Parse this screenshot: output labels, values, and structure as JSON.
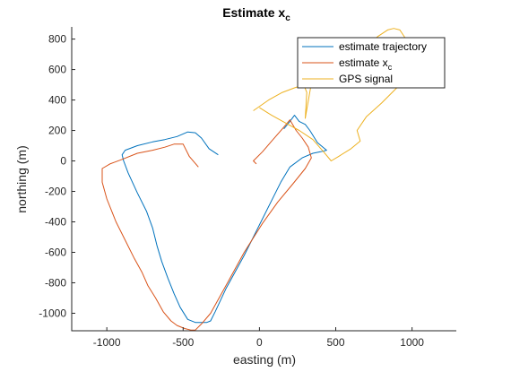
{
  "chart_data": {
    "type": "line",
    "title": "Estimate x",
    "title_subscript": "c",
    "xlabel": "easting (m)",
    "ylabel": "northing (m)",
    "xlim": [
      -1230,
      1290
    ],
    "ylim": [
      -1115,
      880
    ],
    "xticks": [
      -1000,
      -500,
      0,
      500,
      1000
    ],
    "xtick_labels": [
      "-1000",
      "-500",
      "0",
      "500",
      "1000"
    ],
    "yticks": [
      800,
      600,
      400,
      200,
      0,
      -200,
      -400,
      -600,
      -800,
      -1000
    ],
    "ytick_labels": [
      "800",
      "600",
      "400",
      "200",
      "0",
      "-200",
      "-400",
      "-600",
      "-800",
      "-1000"
    ],
    "grid": false,
    "legend_position": "top-right",
    "series": [
      {
        "name": "estimate trajectory",
        "name_subscript": "",
        "color": "#0072BD",
        "x": [
          -270,
          -330,
          -380,
          -420,
          -470,
          -540,
          -620,
          -700,
          -800,
          -880,
          -900,
          -890,
          -860,
          -800,
          -740,
          -700,
          -670,
          -640,
          -600,
          -560,
          -520,
          -470,
          -420,
          -380,
          -345,
          -320,
          -290,
          -220,
          -100,
          0,
          80,
          140,
          200,
          280,
          350,
          400,
          440,
          380,
          330,
          300,
          260,
          230,
          200,
          160
        ],
        "y": [
          40,
          80,
          150,
          185,
          190,
          160,
          140,
          125,
          100,
          70,
          40,
          0,
          -80,
          -210,
          -330,
          -440,
          -560,
          -660,
          -770,
          -870,
          -960,
          -1040,
          -1060,
          -1060,
          -1060,
          -1050,
          -990,
          -840,
          -620,
          -420,
          -260,
          -140,
          -40,
          20,
          50,
          60,
          70,
          120,
          200,
          240,
          260,
          300,
          260,
          210
        ]
      },
      {
        "name": "estimate x",
        "name_subscript": "c",
        "color": "#D95319",
        "x": [
          -400,
          -460,
          -500,
          -560,
          -620,
          -700,
          -800,
          -900,
          -980,
          -1030,
          -1030,
          -1000,
          -940,
          -880,
          -820,
          -770,
          -730,
          -680,
          -630,
          -580,
          -540,
          -490,
          -450,
          -420,
          -380,
          -320,
          -220,
          -100,
          20,
          120,
          220,
          300,
          340,
          320,
          280,
          240,
          200,
          150,
          80,
          20,
          -40,
          -20
        ],
        "y": [
          -40,
          30,
          110,
          110,
          90,
          70,
          50,
          10,
          -20,
          -50,
          -140,
          -250,
          -400,
          -520,
          -640,
          -730,
          -820,
          -900,
          -990,
          -1050,
          -1080,
          -1100,
          -1110,
          -1110,
          -1070,
          -1000,
          -820,
          -600,
          -410,
          -270,
          -150,
          -50,
          20,
          90,
          150,
          200,
          270,
          210,
          130,
          60,
          0,
          -20
        ]
      },
      {
        "name": "GPS signal",
        "name_subscript": "",
        "color": "#EDB120",
        "x": [
          -40,
          60,
          150,
          230,
          290,
          310,
          300,
          340,
          400,
          460,
          540,
          620,
          700,
          780,
          840,
          880,
          920,
          960,
          1000,
          1050,
          1000,
          900,
          800,
          700,
          640,
          660,
          600,
          520,
          470,
          420,
          350,
          260,
          170,
          80,
          0
        ],
        "y": [
          330,
          400,
          450,
          480,
          500,
          450,
          280,
          510,
          560,
          600,
          650,
          700,
          760,
          820,
          860,
          870,
          860,
          800,
          730,
          650,
          560,
          480,
          380,
          290,
          200,
          130,
          80,
          30,
          0,
          60,
          140,
          200,
          250,
          300,
          350
        ]
      }
    ]
  }
}
